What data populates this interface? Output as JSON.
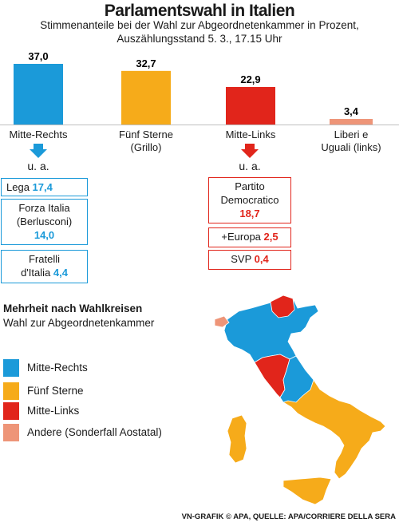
{
  "header": {
    "title": "Parlamentswahl in Italien",
    "subtitle_line1": "Stimmenanteile bei der Wahl zur Abgeordnetenkammer in Prozent,",
    "subtitle_line2": "Auszählungsstand 5. 3., 17.15 Uhr"
  },
  "chart_data": {
    "type": "bar",
    "categories": [
      "Mitte-Rechts",
      "Fünf Sterne (Grillo)",
      "Mitte-Links",
      "Liberi e Uguali (links)"
    ],
    "values": [
      37.0,
      32.7,
      22.9,
      3.4
    ],
    "value_labels": [
      "37,0",
      "32,7",
      "22,9",
      "3,4"
    ],
    "label_lines": [
      [
        "Mitte-Rechts"
      ],
      [
        "Fünf Sterne",
        "(Grillo)"
      ],
      [
        "Mitte-Links"
      ],
      [
        "Liberi e",
        "Uguali (links)"
      ]
    ],
    "colors": [
      "#1b9ad9",
      "#f6ab1a",
      "#e1251b",
      "#ee9578"
    ],
    "ylim": [
      0,
      40
    ]
  },
  "coalitions": {
    "ua_label": "u. a.",
    "right": [
      {
        "lines": [
          "Lega"
        ],
        "value": "17,4"
      },
      {
        "lines": [
          "Forza Italia",
          "(Berlusconi)"
        ],
        "value": "14,0"
      },
      {
        "lines": [
          "Fratelli",
          "d'Italia"
        ],
        "value": "4,4"
      }
    ],
    "left": [
      {
        "lines": [
          "Partito",
          "Democratico"
        ],
        "value": "18,7"
      },
      {
        "lines": [
          "+Europa"
        ],
        "value": "2,5"
      },
      {
        "lines": [
          "SVP"
        ],
        "value": "0,4"
      }
    ]
  },
  "constituencies": {
    "title": "Mehrheit nach Wahlkreisen",
    "subtitle": "Wahl zur Abgeordnetenkammer"
  },
  "legend": [
    {
      "label": "Mitte-Rechts",
      "color": "#1b9ad9"
    },
    {
      "label": "Fünf Sterne",
      "color": "#f6ab1a"
    },
    {
      "label": "Mitte-Links",
      "color": "#e1251b"
    },
    {
      "label": "Andere (Sonderfall Aostatal)",
      "color": "#ee9578"
    }
  ],
  "credit": "VN-GRAFIK © APA, QUELLE: APA/CORRIERE DELLA SERA"
}
